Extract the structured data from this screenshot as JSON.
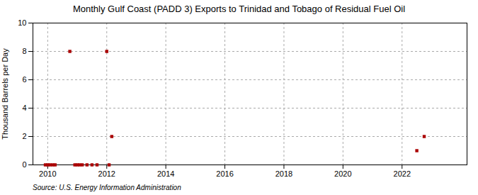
{
  "chart_data": {
    "type": "scatter",
    "title": "Monthly Gulf Coast (PADD 3) Exports to Trinidad and Tobago of Residual Fuel Oil",
    "ylabel": "Thousand Barrels per Day",
    "source": "Source: U.S. Energy Information Administration",
    "color": "#aa0000",
    "marker": "square",
    "grid": true,
    "xlim": [
      2009.5,
      2024.2
    ],
    "ylim": [
      0,
      10
    ],
    "xticks": [
      2010,
      2012,
      2014,
      2016,
      2018,
      2020,
      2022
    ],
    "yticks": [
      0,
      2,
      4,
      6,
      8,
      10
    ],
    "x": [
      2009.92,
      2010.0,
      2010.08,
      2010.17,
      2010.25,
      2010.75,
      2010.92,
      2011.0,
      2011.08,
      2011.17,
      2011.33,
      2011.5,
      2011.67,
      2012.0,
      2012.08,
      2012.17,
      2022.5,
      2022.75
    ],
    "values": [
      0.0,
      0.0,
      0.0,
      0.0,
      0.0,
      8.0,
      0.0,
      0.0,
      0.0,
      0.0,
      0.0,
      0.0,
      0.0,
      8.0,
      0.0,
      2.0,
      1.0,
      2.0
    ]
  }
}
